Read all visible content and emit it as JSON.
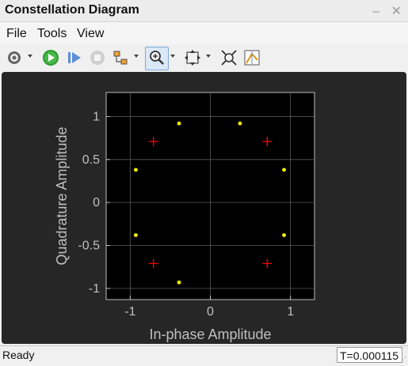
{
  "window": {
    "title": "Constellation Diagram",
    "min_glyph": "–",
    "close_glyph": "✕"
  },
  "menu": [
    "File",
    "Tools",
    "View"
  ],
  "toolbar": {
    "icons": [
      "gear-icon",
      "play-icon",
      "step-forward-icon",
      "stop-icon",
      "highlight-sim-icon",
      "zoom-in-icon",
      "pan-icon",
      "autoscale-icon",
      "data-cursor-icon"
    ]
  },
  "status": {
    "left": "Ready",
    "right": "T=0.000115"
  },
  "chart_data": {
    "type": "scatter",
    "xlabel": "In-phase Amplitude",
    "ylabel": "Quadrature Amplitude",
    "xlim": [
      -1.3,
      1.3
    ],
    "ylim": [
      -1.13,
      1.28
    ],
    "xticks": [
      -1,
      0,
      1
    ],
    "xtick_labels": [
      "-1",
      "0",
      "1"
    ],
    "yticks": [
      1,
      0.5,
      0,
      -0.5,
      -1
    ],
    "ytick_labels": [
      "1",
      "0.5",
      "0",
      "-0.5",
      "-1"
    ],
    "grid": true,
    "series": [
      {
        "marker": "plus",
        "color": "#ff0000",
        "points": [
          [
            -0.71,
            0.71
          ],
          [
            0.71,
            0.71
          ],
          [
            -0.71,
            -0.71
          ],
          [
            0.71,
            -0.71
          ]
        ]
      },
      {
        "marker": "dot",
        "color": "#ffff00",
        "points": [
          [
            -0.39,
            0.92
          ],
          [
            0.37,
            0.92
          ],
          [
            -0.93,
            0.38
          ],
          [
            0.92,
            0.38
          ],
          [
            -0.93,
            -0.38
          ],
          [
            0.92,
            -0.38
          ],
          [
            -0.39,
            -0.93
          ]
        ]
      }
    ]
  }
}
